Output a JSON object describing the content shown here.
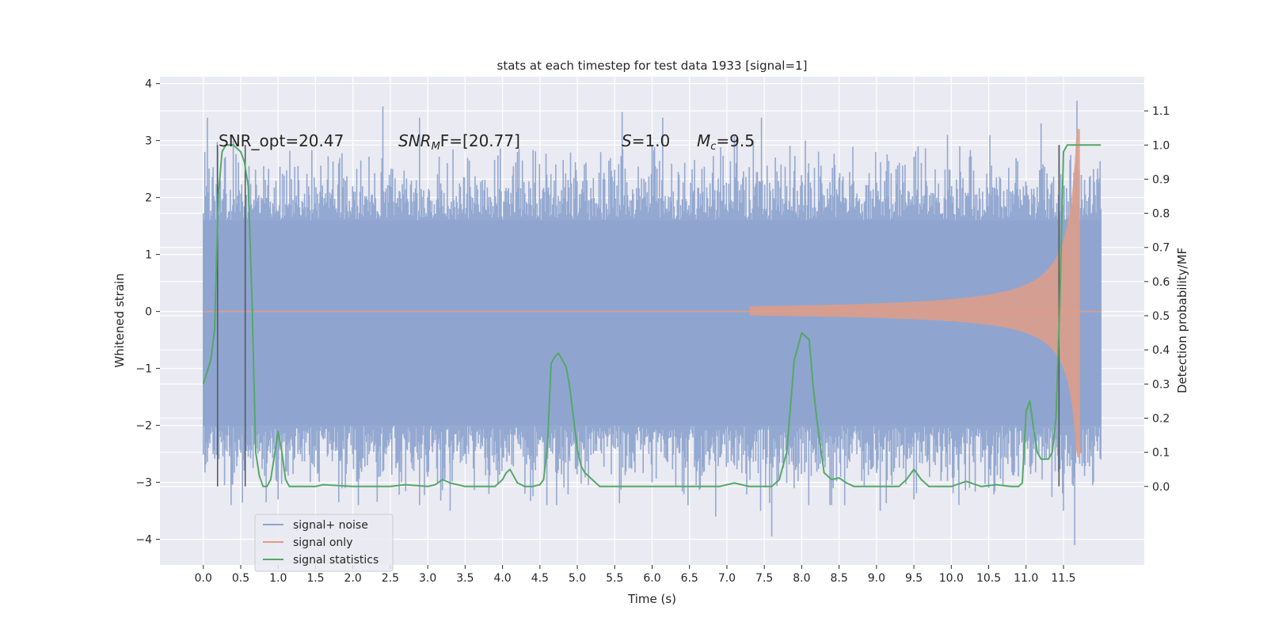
{
  "chart_data": {
    "type": "line",
    "title": "stats at each timestep for test data 1933 [signal=1]",
    "xlabel": "Time (s)",
    "ylabel": "Whitened strain",
    "y2label": "Detection probability/MF",
    "xlim": [
      -0.58,
      12.58
    ],
    "ylim": [
      -4.45,
      4.12
    ],
    "y2lim": [
      -0.23,
      1.2
    ],
    "x_ticks": [
      "0.0",
      "0.5",
      "1.0",
      "1.5",
      "2.0",
      "2.5",
      "3.0",
      "3.5",
      "4.0",
      "4.5",
      "5.0",
      "5.5",
      "6.0",
      "6.5",
      "7.0",
      "7.5",
      "8.0",
      "8.5",
      "9.0",
      "9.5",
      "10.0",
      "10.5",
      "11.0",
      "11.5"
    ],
    "y_ticks": [
      "4",
      "3",
      "2",
      "1",
      "0",
      "−1",
      "−2",
      "−3",
      "−4"
    ],
    "y2_ticks": [
      "1.1",
      "1.0",
      "0.9",
      "0.8",
      "0.7",
      "0.6",
      "0.5",
      "0.4",
      "0.3",
      "0.2",
      "0.1",
      "0.0"
    ],
    "grid": true,
    "legend_position": "lower-left",
    "annotations": {
      "snr_opt": "SNR_opt=20.47",
      "snr_mf_sym": "SNR",
      "snr_mf_sub": "M",
      "snr_mf_rest": "F=[20.77]",
      "s_sym": "S",
      "s_rest": "=1.0",
      "mc_sym": "M",
      "mc_sub": "c",
      "mc_rest": "=9.5"
    },
    "markers_x": [
      0.19,
      0.56,
      11.44
    ],
    "series": [
      {
        "name": "signal+ noise",
        "color": "#8fa5cf",
        "kind": "noise",
        "x_range": [
          0.0,
          12.0
        ],
        "envelope": [
          -2.0,
          1.6
        ],
        "outliers": [
          [
            0.02,
            2.8
          ],
          [
            0.4,
            3.0
          ],
          [
            1.0,
            -3.3
          ],
          [
            1.9,
            -3.1
          ],
          [
            2.4,
            3.6
          ],
          [
            2.65,
            -3.0
          ],
          [
            3.3,
            -3.5
          ],
          [
            4.2,
            2.8
          ],
          [
            4.3,
            -3.2
          ],
          [
            5.6,
            3.5
          ],
          [
            6.0,
            -3.0
          ],
          [
            6.85,
            -3.6
          ],
          [
            7.1,
            3.1
          ],
          [
            7.45,
            -3.5
          ],
          [
            7.6,
            -3.95
          ],
          [
            8.05,
            3.0
          ],
          [
            9.05,
            -3.5
          ],
          [
            9.5,
            -3.3
          ],
          [
            10.5,
            -3.1
          ],
          [
            11.2,
            3.3
          ],
          [
            11.5,
            -3.5
          ],
          [
            11.68,
            3.7
          ],
          [
            11.65,
            -4.1
          ]
        ]
      },
      {
        "name": "signal only",
        "color": "#e19c87",
        "kind": "chirp",
        "x_range": [
          7.3,
          11.72
        ],
        "peak_amplitude": 3.2
      },
      {
        "name": "signal statistics",
        "color": "#55a868",
        "axis": "right",
        "x": [
          0.0,
          0.1,
          0.15,
          0.2,
          0.25,
          0.3,
          0.4,
          0.5,
          0.55,
          0.6,
          0.65,
          0.7,
          0.75,
          0.8,
          0.85,
          0.9,
          0.95,
          1.0,
          1.05,
          1.1,
          1.15,
          1.2,
          1.3,
          1.5,
          1.6,
          2.0,
          2.5,
          2.7,
          3.0,
          3.1,
          3.2,
          3.3,
          3.5,
          3.9,
          4.0,
          4.05,
          4.1,
          4.15,
          4.2,
          4.3,
          4.4,
          4.5,
          4.55,
          4.6,
          4.65,
          4.7,
          4.75,
          4.8,
          4.85,
          4.9,
          4.95,
          5.0,
          5.05,
          5.1,
          5.15,
          5.2,
          5.3,
          5.4,
          6.0,
          6.9,
          7.1,
          7.2,
          7.3,
          7.6,
          7.7,
          7.8,
          7.9,
          8.0,
          8.05,
          8.1,
          8.15,
          8.2,
          8.3,
          8.4,
          8.5,
          8.6,
          8.7,
          9.0,
          9.3,
          9.4,
          9.5,
          9.6,
          9.7,
          10.0,
          10.2,
          10.4,
          10.6,
          10.8,
          10.9,
          10.95,
          11.0,
          11.05,
          11.1,
          11.15,
          11.2,
          11.3,
          11.35,
          11.4,
          11.45,
          11.5,
          11.55,
          12.0
        ],
        "y": [
          0.3,
          0.37,
          0.46,
          0.85,
          0.98,
          1.0,
          1.0,
          0.98,
          0.95,
          0.88,
          0.55,
          0.1,
          0.03,
          0.0,
          0.0,
          0.02,
          0.09,
          0.16,
          0.1,
          0.02,
          0.0,
          0.0,
          0.0,
          0.0,
          0.005,
          0.0,
          0.0,
          0.005,
          0.0,
          0.005,
          0.02,
          0.01,
          0.0,
          0.0,
          0.02,
          0.04,
          0.05,
          0.03,
          0.01,
          0.0,
          0.0,
          0.005,
          0.02,
          0.12,
          0.36,
          0.38,
          0.39,
          0.37,
          0.35,
          0.29,
          0.2,
          0.11,
          0.06,
          0.04,
          0.03,
          0.02,
          0.0,
          0.0,
          0.0,
          0.0,
          0.01,
          0.005,
          0.0,
          0.0,
          0.02,
          0.1,
          0.37,
          0.45,
          0.44,
          0.43,
          0.3,
          0.2,
          0.04,
          0.02,
          0.025,
          0.01,
          0.0,
          0.0,
          0.0,
          0.02,
          0.05,
          0.02,
          0.0,
          0.0,
          0.015,
          0.0,
          0.005,
          0.0,
          0.0,
          0.01,
          0.22,
          0.25,
          0.17,
          0.1,
          0.08,
          0.08,
          0.1,
          0.2,
          0.53,
          0.98,
          1.0,
          1.0
        ]
      }
    ]
  }
}
